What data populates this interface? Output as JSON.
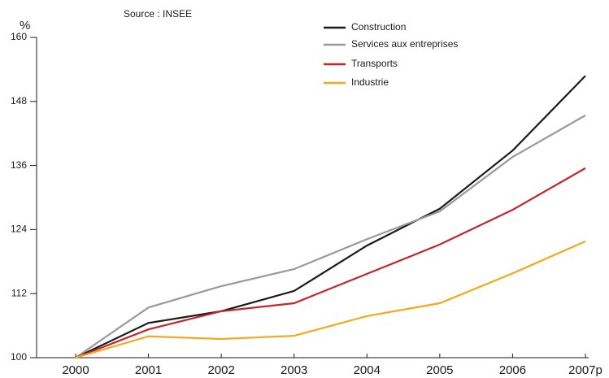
{
  "chart_data": {
    "type": "line",
    "y_label": "%",
    "source": "Source : INSEE",
    "categories": [
      "2000",
      "2001",
      "2002",
      "2003",
      "2004",
      "2005",
      "2006",
      "2007p"
    ],
    "series": [
      {
        "name": "Construction",
        "color": "#1a1a1a",
        "values": [
          100,
          106.5,
          108.7,
          112.5,
          121,
          127.9,
          138.8,
          152.8
        ]
      },
      {
        "name": "Services aux entreprises",
        "color": "#999999",
        "values": [
          100,
          109.4,
          113.4,
          116.6,
          122.2,
          127.4,
          137.6,
          145.4
        ]
      },
      {
        "name": "Transports",
        "color": "#c1272d",
        "values": [
          100,
          105.3,
          108.7,
          110.2,
          115.7,
          121.2,
          127.7,
          135.5
        ]
      },
      {
        "name": "Industrie",
        "color": "#f5a81c",
        "values": [
          100,
          104,
          103.5,
          104.1,
          107.8,
          110.2,
          115.8,
          121.8
        ]
      }
    ],
    "ylim": [
      100,
      160
    ],
    "yticks": [
      100,
      112,
      124,
      136,
      148,
      160
    ],
    "legend": "top"
  }
}
